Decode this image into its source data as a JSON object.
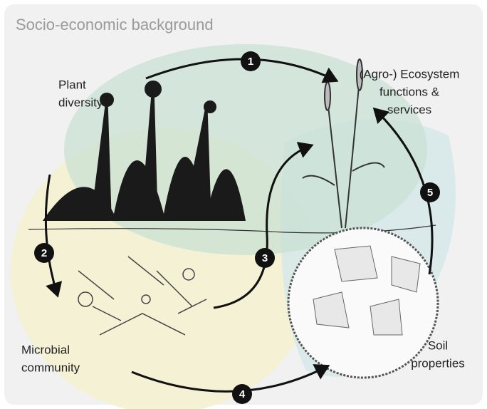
{
  "title": "Socio-economic background",
  "labels": [
    {
      "lines": [
        "Plant",
        "diversity"
      ]
    },
    {
      "lines": [
        "(Agro-) Ecosystem",
        "functions &",
        "services"
      ]
    },
    {
      "lines": [
        "Microbial",
        "community"
      ]
    },
    {
      "lines": [
        "Soil",
        "properties"
      ]
    }
  ],
  "steps": [
    "1",
    "2",
    "3",
    "4",
    "5"
  ]
}
